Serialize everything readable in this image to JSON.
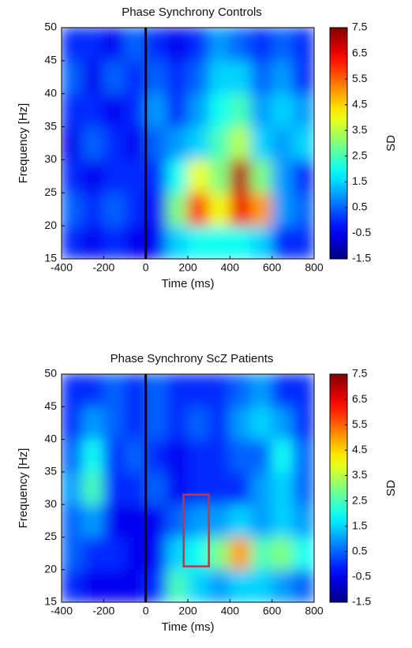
{
  "chart_data": [
    {
      "type": "heatmap",
      "title": "Phase Synchrony Controls",
      "xlabel": "Time (ms)",
      "ylabel": "Frequency [Hz]",
      "colorbar_label": "SD",
      "colormap": "jet",
      "x": [
        -350,
        -250,
        -150,
        -50,
        50,
        150,
        250,
        350,
        450,
        550,
        650,
        750
      ],
      "y": [
        17.5,
        22.5,
        27.5,
        32.5,
        37.5,
        42.5,
        47.5
      ],
      "z": [
        [
          0,
          -0.5,
          0,
          -0.5,
          -0.5,
          1.5,
          2,
          2,
          2,
          1.5,
          0,
          0
        ],
        [
          0.5,
          0,
          0.5,
          0,
          -0.5,
          3,
          6,
          4,
          6.5,
          5,
          1,
          0.5
        ],
        [
          0,
          -0.5,
          0,
          0,
          0,
          2,
          4,
          3,
          7,
          3,
          1,
          0
        ],
        [
          -0.5,
          0.5,
          0,
          -0.5,
          0.5,
          1,
          1.5,
          2.5,
          3.5,
          1.5,
          1,
          1.5
        ],
        [
          0,
          0,
          -0.5,
          0,
          1,
          0,
          1,
          2,
          2.5,
          1,
          1.5,
          1
        ],
        [
          0.5,
          -0.5,
          0.5,
          0,
          0.5,
          0,
          0.5,
          1.5,
          1.5,
          0.5,
          1,
          0
        ],
        [
          0,
          0,
          -0.5,
          0.5,
          0,
          -0.5,
          0,
          1,
          0.5,
          0,
          0.5,
          0
        ]
      ],
      "xlim": [
        -400,
        800
      ],
      "xticks": [
        -400,
        -200,
        0,
        200,
        400,
        600,
        800
      ],
      "ylim": [
        15,
        50
      ],
      "yticks": [
        15,
        20,
        25,
        30,
        35,
        40,
        45,
        50
      ],
      "zlim": [
        -1.5,
        7.5
      ],
      "zticks": [
        7.5,
        6.5,
        5.5,
        4.5,
        3.5,
        2.5,
        1.5,
        0.5,
        -0.5,
        -1.5
      ],
      "vline": 0
    },
    {
      "type": "heatmap",
      "title": "Phase Synchrony ScZ Patients",
      "xlabel": "Time (ms)",
      "ylabel": "Frequency [Hz]",
      "colorbar_label": "SD",
      "colormap": "jet",
      "x": [
        -350,
        -250,
        -150,
        -50,
        50,
        150,
        250,
        350,
        450,
        550,
        650,
        750
      ],
      "y": [
        17.5,
        22.5,
        27.5,
        32.5,
        37.5,
        42.5,
        47.5
      ],
      "z": [
        [
          0,
          -0.5,
          -0.5,
          -0.5,
          0,
          2.5,
          1.5,
          1,
          1.5,
          1.5,
          1,
          0.5
        ],
        [
          0.5,
          0,
          0,
          -0.5,
          -0.5,
          1.5,
          2,
          3,
          5,
          2.5,
          3,
          2
        ],
        [
          0.5,
          1,
          -0.5,
          -0.5,
          -0.5,
          0.5,
          1,
          1,
          1.5,
          1,
          1.5,
          1
        ],
        [
          1,
          2.5,
          0,
          0,
          0.5,
          -0.5,
          0,
          0,
          0,
          1,
          1.5,
          0.5
        ],
        [
          0.5,
          2,
          0,
          0.5,
          0,
          -0.5,
          0,
          0,
          0.5,
          0.5,
          2,
          0.5
        ],
        [
          0,
          1,
          0.5,
          0,
          0.5,
          0,
          0.5,
          0,
          1,
          1.5,
          1,
          0
        ],
        [
          0,
          0,
          0.5,
          0,
          0.5,
          0,
          0,
          0,
          0.5,
          1,
          0,
          0
        ]
      ],
      "xlim": [
        -400,
        800
      ],
      "xticks": [
        -400,
        -200,
        0,
        200,
        400,
        600,
        800
      ],
      "ylim": [
        15,
        50
      ],
      "yticks": [
        15,
        20,
        25,
        30,
        35,
        40,
        45,
        50
      ],
      "zlim": [
        -1.5,
        7.5
      ],
      "zticks": [
        7.5,
        6.5,
        5.5,
        4.5,
        3.5,
        2.5,
        1.5,
        0.5,
        -0.5,
        -1.5
      ],
      "vline": 0,
      "highlight": {
        "x": [
          180,
          300
        ],
        "y": [
          20.5,
          31.5
        ],
        "color": "#d0303a"
      }
    }
  ]
}
